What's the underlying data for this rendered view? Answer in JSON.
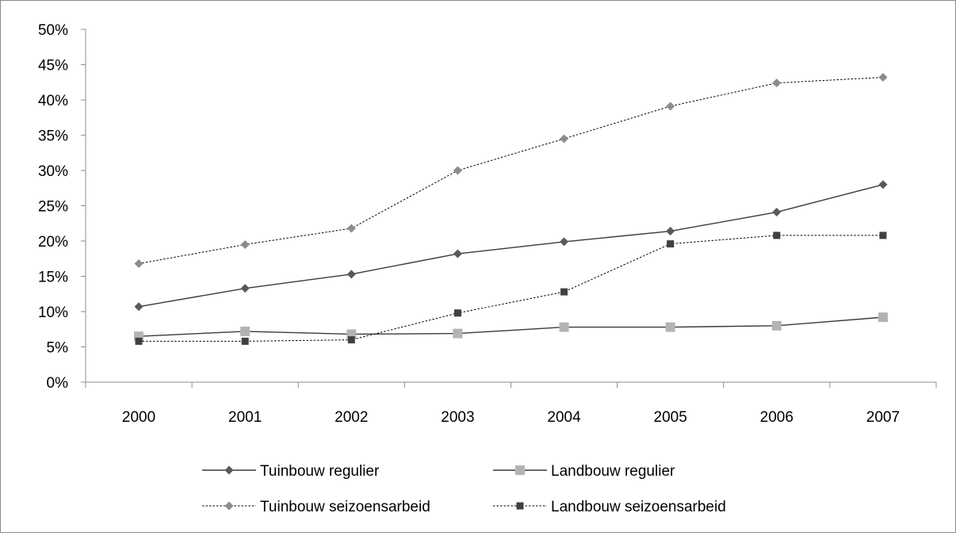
{
  "chart_data": {
    "type": "line",
    "categories": [
      "2000",
      "2001",
      "2002",
      "2003",
      "2004",
      "2005",
      "2006",
      "2007"
    ],
    "y_ticks": [
      "0%",
      "5%",
      "10%",
      "15%",
      "20%",
      "25%",
      "30%",
      "35%",
      "40%",
      "45%",
      "50%"
    ],
    "ylim": [
      0,
      50
    ],
    "y_unit": "%",
    "grid": false,
    "legend_position": "bottom",
    "series": [
      {
        "name": "Tuinbouw regulier",
        "values": [
          10.7,
          13.3,
          15.3,
          18.2,
          19.9,
          21.4,
          24.1,
          28.0
        ],
        "color": "#595959",
        "dashed": false,
        "marker": "diamond"
      },
      {
        "name": "Landbouw regulier",
        "values": [
          6.5,
          7.2,
          6.8,
          6.9,
          7.8,
          7.8,
          8.0,
          9.2
        ],
        "color": "#b3b3b3",
        "dashed": false,
        "marker": "square"
      },
      {
        "name": "Tuinbouw seizoensarbeid",
        "values": [
          16.8,
          19.5,
          21.8,
          30.0,
          34.5,
          39.1,
          42.4,
          43.2
        ],
        "color": "#8c8c8c",
        "dashed": true,
        "marker": "diamond"
      },
      {
        "name": "Landbouw seizoensarbeid",
        "values": [
          5.8,
          5.8,
          6.0,
          9.8,
          12.8,
          19.6,
          20.8,
          20.8
        ],
        "color": "#404040",
        "dashed": true,
        "marker": "square"
      }
    ]
  }
}
